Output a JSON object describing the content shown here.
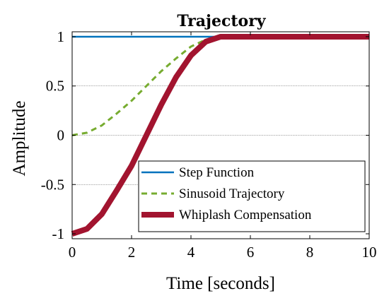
{
  "chart_data": {
    "type": "line",
    "title": "Trajectory",
    "xlabel": "Time [seconds]",
    "ylabel": "Amplitude",
    "xlim": [
      0,
      10
    ],
    "ylim": [
      -1.05,
      1.05
    ],
    "xticks": [
      0,
      2,
      4,
      6,
      8,
      10
    ],
    "xtick_labels": [
      "0",
      "2",
      "4",
      "6",
      "8",
      "10"
    ],
    "yticks": [
      1,
      0.5,
      0,
      -0.5,
      -1
    ],
    "ytick_labels": [
      "1",
      "0.5",
      "0",
      "-0.5",
      "-1"
    ],
    "grid": "horizontal dotted lines at y = 0.5, 0, -0.5",
    "legend_position": "bottom-right",
    "series": [
      {
        "name": "Step Function",
        "color": "#0072BD",
        "style": "solid",
        "x": [
          0,
          10
        ],
        "y": [
          1,
          1
        ]
      },
      {
        "name": "Sinusoid Trajectory",
        "color": "#77AC30",
        "style": "dashed",
        "x": [
          0,
          0.5,
          1,
          1.5,
          2,
          2.5,
          3,
          3.5,
          4,
          4.5,
          5,
          6,
          8,
          10
        ],
        "y": [
          0,
          0.026,
          0.1,
          0.22,
          0.35,
          0.5,
          0.65,
          0.78,
          0.9,
          0.97,
          1,
          1,
          1,
          1
        ]
      },
      {
        "name": "Whiplash Compensation",
        "color": "#A2142F",
        "style": "solid-thick",
        "x": [
          0,
          0.5,
          1,
          1.5,
          2,
          2.5,
          3,
          3.5,
          4,
          4.5,
          5,
          6,
          8,
          10
        ],
        "y": [
          -1,
          -0.95,
          -0.8,
          -0.56,
          -0.31,
          -0.0,
          0.31,
          0.59,
          0.81,
          0.95,
          1,
          1,
          1,
          1
        ]
      }
    ]
  }
}
